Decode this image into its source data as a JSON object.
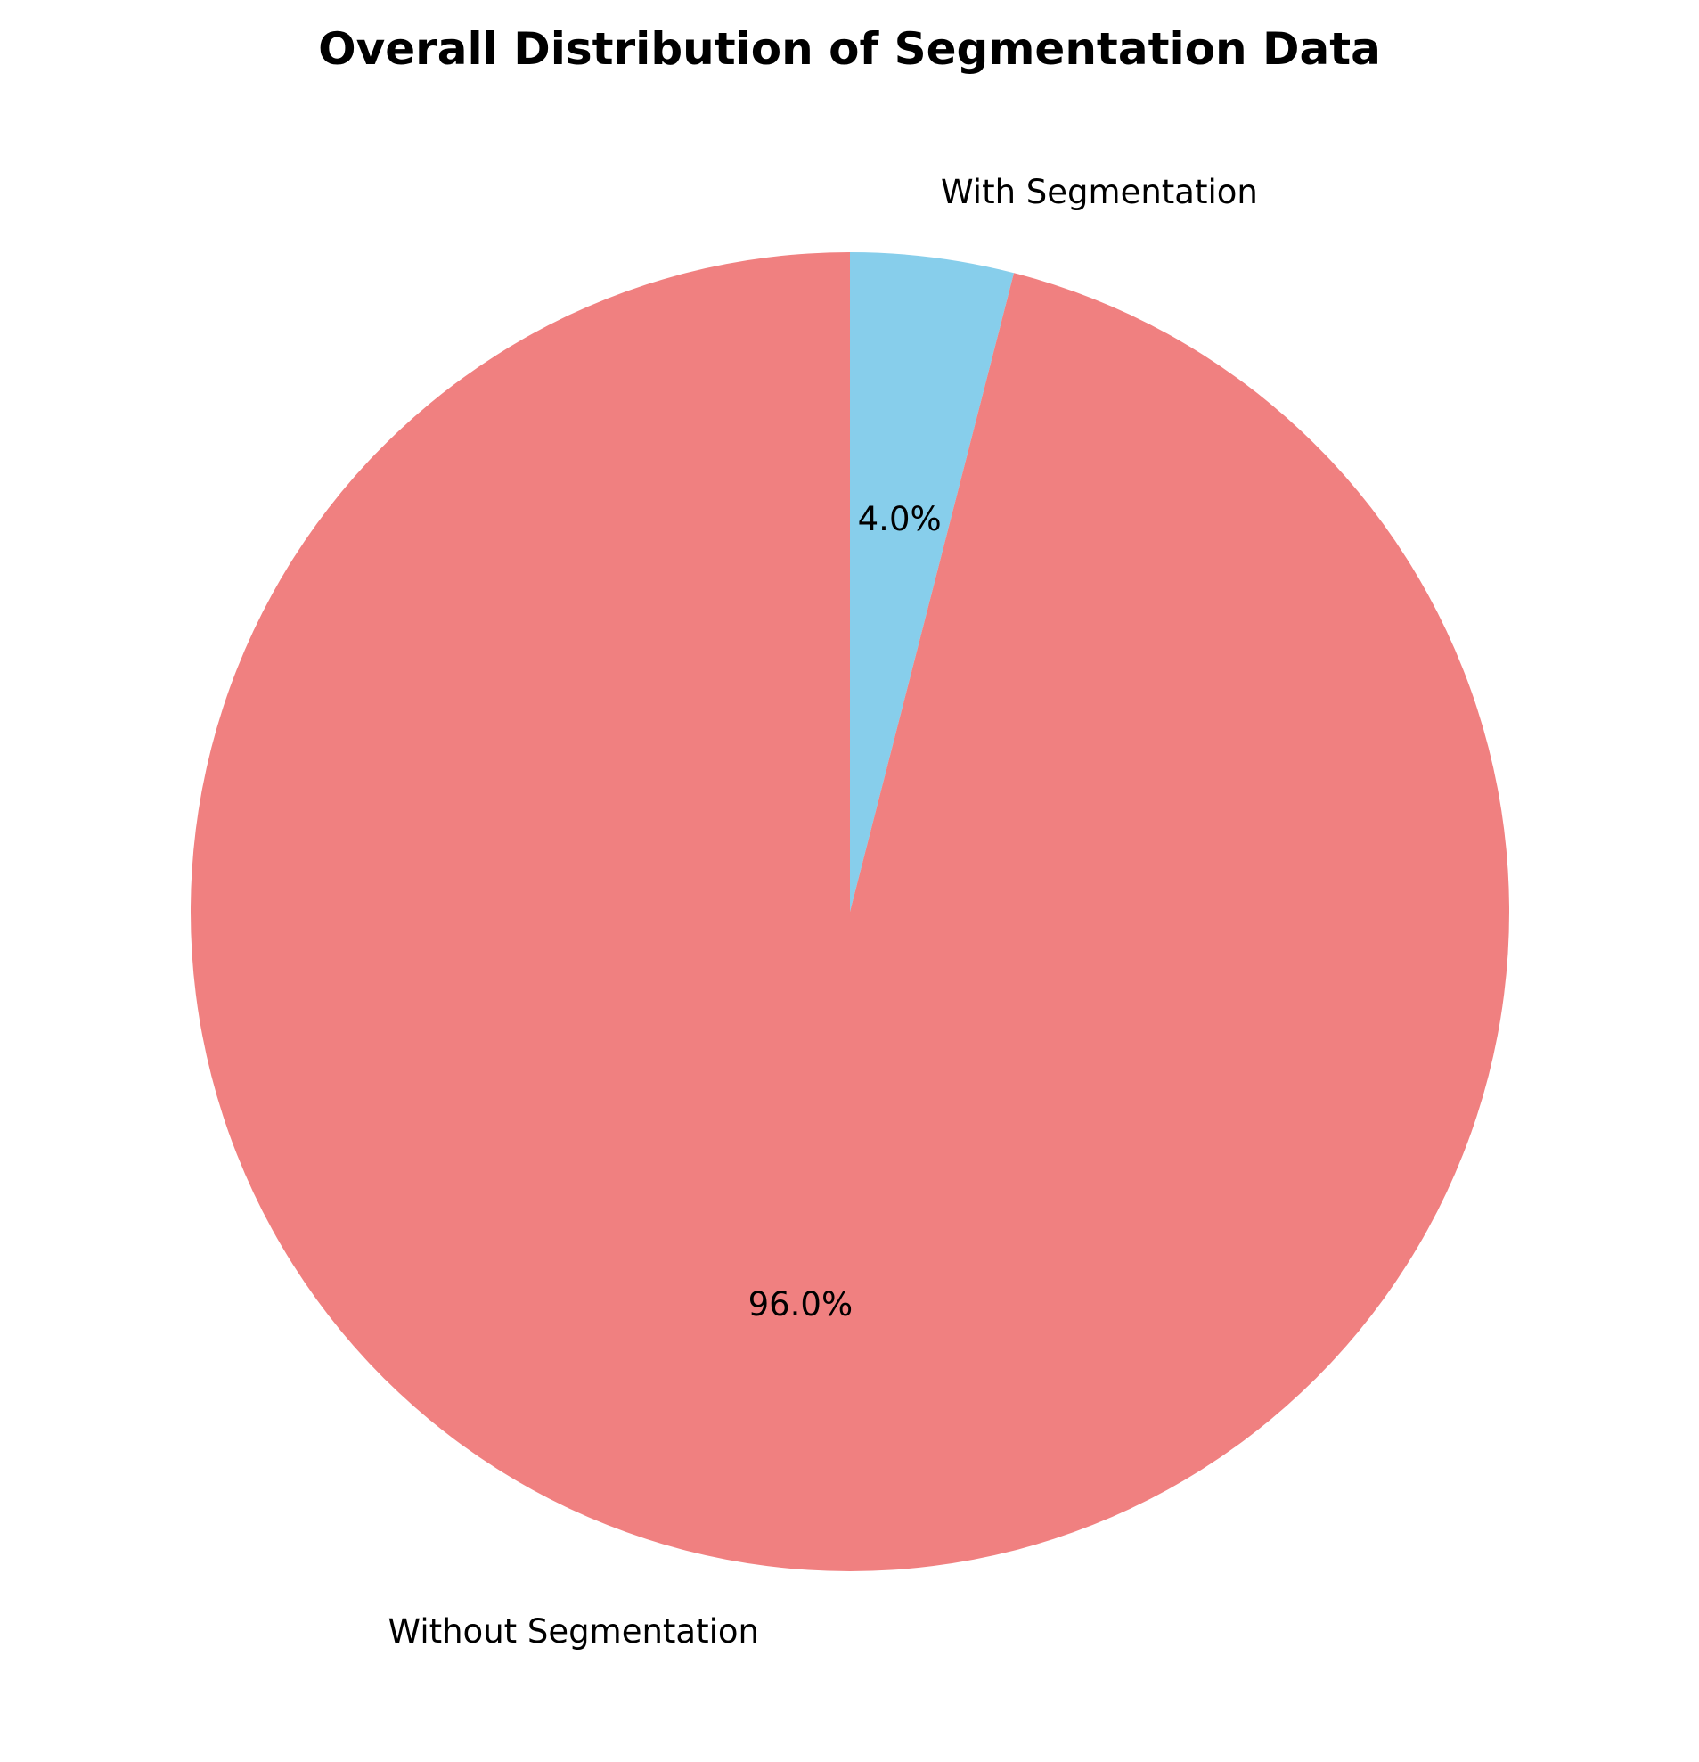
{
  "chart_data": {
    "type": "pie",
    "title": "Overall Distribution of Segmentation Data",
    "slices": [
      {
        "label": "With Segmentation",
        "value": 4.0,
        "pct_label": "4.0%",
        "color": "#87CEEB"
      },
      {
        "label": "Without Segmentation",
        "value": 96.0,
        "pct_label": "96.0%",
        "color": "#F08080"
      }
    ],
    "start_angle_deg": 90,
    "direction": "clockwise"
  }
}
